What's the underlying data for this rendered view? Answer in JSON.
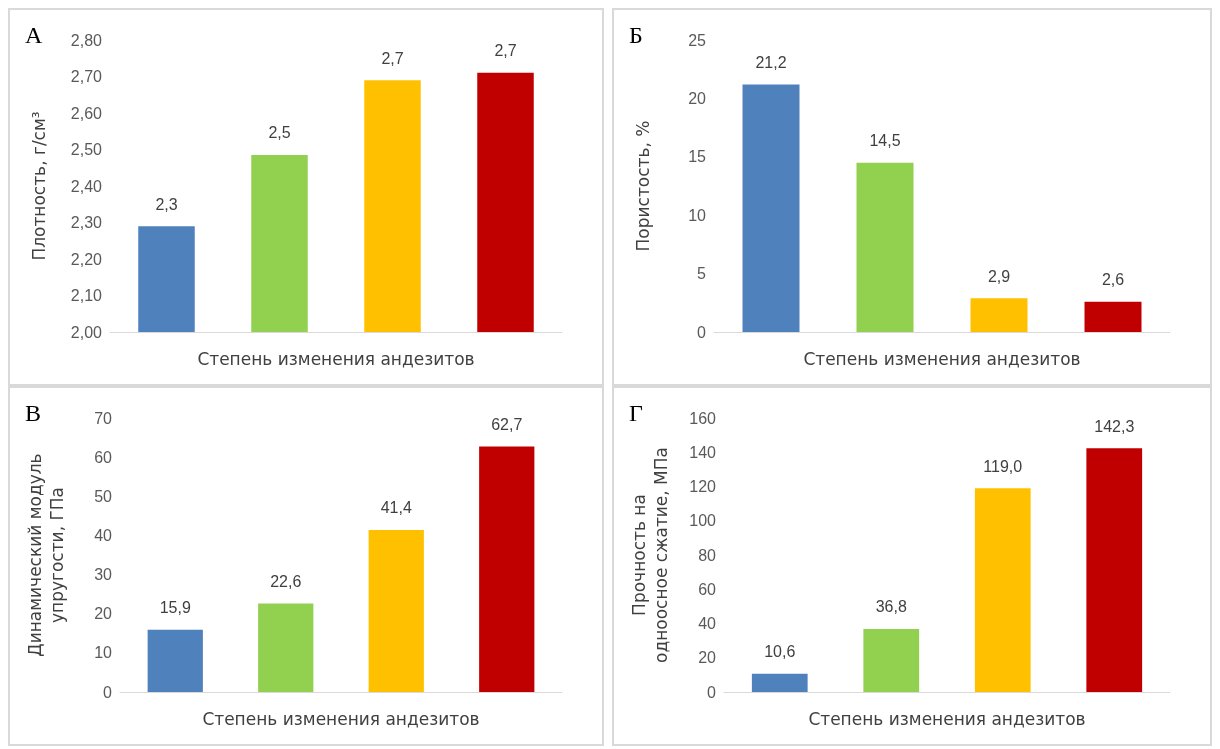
{
  "chart_data": [
    {
      "type": "bar",
      "title": "А",
      "xlabel": "Степень изменения андезитов",
      "ylabel": "Плотность, г/см³",
      "categories": [
        null,
        null,
        null,
        null
      ],
      "values": [
        2.29,
        2.485,
        2.69,
        2.71
      ],
      "colors": [
        "#4f81bd",
        "#92d050",
        "#ffc000",
        "#c00000"
      ],
      "value_labels": [
        "2,3",
        "2,5",
        "2,7",
        "2,7"
      ],
      "ylim": [
        2.0,
        2.8
      ],
      "yticks": [
        {
          "value": 2.0,
          "label": "2,00"
        },
        {
          "value": 2.1,
          "label": "2,10"
        },
        {
          "value": 2.2,
          "label": "2,20"
        },
        {
          "value": 2.3,
          "label": "2,30"
        },
        {
          "value": 2.4,
          "label": "2,40"
        },
        {
          "value": 2.5,
          "label": "2,50"
        },
        {
          "value": 2.6,
          "label": "2,60"
        },
        {
          "value": 2.7,
          "label": "2,70"
        },
        {
          "value": 2.8,
          "label": "2,80"
        }
      ],
      "grid": false
    },
    {
      "type": "bar",
      "title": "Б",
      "xlabel": "Степень изменения андезитов",
      "ylabel": "Пористость, %",
      "categories": [
        null,
        null,
        null,
        null
      ],
      "values": [
        21.2,
        14.5,
        2.9,
        2.6
      ],
      "colors": [
        "#4f81bd",
        "#92d050",
        "#ffc000",
        "#c00000"
      ],
      "value_labels": [
        "21,2",
        "14,5",
        "2,9",
        "2,6"
      ],
      "ylim": [
        0,
        25
      ],
      "yticks": [
        0,
        5,
        10,
        15,
        20,
        25
      ],
      "grid": false
    },
    {
      "type": "bar",
      "title": "В",
      "xlabel": "Степень изменения андезитов",
      "ylabel": "Динамический модуль\nупругости, ГПа",
      "categories": [
        null,
        null,
        null,
        null
      ],
      "values": [
        15.9,
        22.6,
        41.4,
        62.7
      ],
      "colors": [
        "#4f81bd",
        "#92d050",
        "#ffc000",
        "#c00000"
      ],
      "value_labels": [
        "15,9",
        "22,6",
        "41,4",
        "62,7"
      ],
      "ylim": [
        0,
        70
      ],
      "yticks": [
        0,
        10,
        20,
        30,
        40,
        50,
        60,
        70
      ],
      "grid": false
    },
    {
      "type": "bar",
      "title": "Г",
      "xlabel": "Степень изменения андезитов",
      "ylabel": "Прочность на\nодноосное сжатие, МПа",
      "categories": [
        null,
        null,
        null,
        null
      ],
      "values": [
        10.6,
        36.8,
        119.0,
        142.3
      ],
      "colors": [
        "#4f81bd",
        "#92d050",
        "#ffc000",
        "#c00000"
      ],
      "value_labels": [
        "10,6",
        "36,8",
        "119,0",
        "142,3"
      ],
      "ylim": [
        0,
        160
      ],
      "yticks": [
        0,
        20,
        40,
        60,
        80,
        100,
        120,
        140,
        160
      ],
      "grid": false
    }
  ]
}
